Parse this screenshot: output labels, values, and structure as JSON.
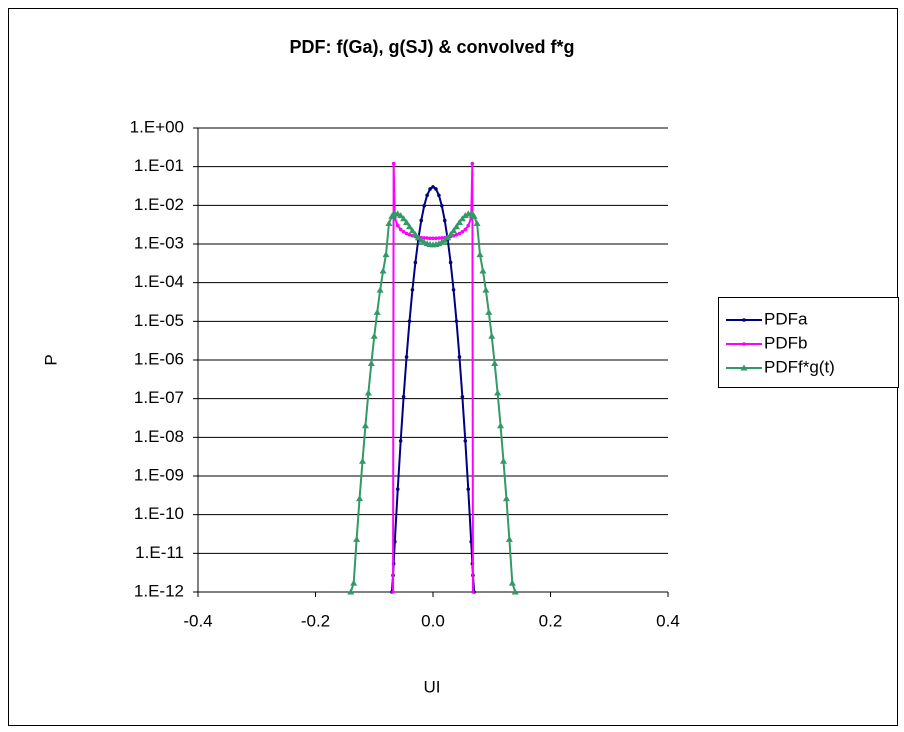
{
  "chart_data": {
    "type": "line",
    "title": "PDF: f(Ga), g(SJ) & convolved f*g",
    "xlabel": "UI",
    "ylabel": "P",
    "log_y": true,
    "grid": true,
    "legend": "right",
    "xlim": [
      -0.4,
      0.4
    ],
    "xticks": [
      -0.4,
      -0.2,
      {
        "value": 0,
        "label": "0.0"
      },
      0.2,
      0.4
    ],
    "ylim": [
      1e-12,
      1
    ],
    "yticks": [
      {
        "value": 1e-12,
        "label": "1.E-12"
      },
      {
        "value": 1e-11,
        "label": "1.E-11"
      },
      {
        "value": 1e-10,
        "label": "1.E-10"
      },
      {
        "value": 1e-09,
        "label": "1.E-09"
      },
      {
        "value": 1e-08,
        "label": "1.E-08"
      },
      {
        "value": 1e-07,
        "label": "1.E-07"
      },
      {
        "value": 1e-06,
        "label": "1.E-06"
      },
      {
        "value": 1e-05,
        "label": "1.E-05"
      },
      {
        "value": 0.0001,
        "label": "1.E-04"
      },
      {
        "value": 0.001,
        "label": "1.E-03"
      },
      {
        "value": 0.01,
        "label": "1.E-02"
      },
      {
        "value": 0.1,
        "label": "1.E-01"
      },
      {
        "value": 1,
        "label": "1.E+00"
      }
    ],
    "x": [
      -0.14,
      -0.135,
      -0.13,
      -0.125,
      -0.12,
      -0.115,
      -0.11,
      -0.105,
      -0.1,
      -0.095,
      -0.09,
      -0.085,
      -0.08,
      -0.075,
      -0.07,
      -0.068,
      -0.067,
      -0.065,
      -0.06,
      -0.055,
      -0.05,
      -0.045,
      -0.04,
      -0.035,
      -0.03,
      -0.025,
      -0.02,
      -0.015,
      -0.01,
      -0.005,
      0,
      0.005,
      0.01,
      0.015,
      0.02,
      0.025,
      0.03,
      0.035,
      0.04,
      0.045,
      0.05,
      0.055,
      0.06,
      0.065,
      0.067,
      0.068,
      0.07,
      0.075,
      0.08,
      0.085,
      0.09,
      0.095,
      0.1,
      0.105,
      0.11,
      0.115,
      0.12,
      0.125,
      0.13,
      0.135,
      0.14
    ],
    "series": [
      {
        "name": "PDFa",
        "color": "#000080",
        "marker": "dot",
        "values": [
          null,
          null,
          null,
          null,
          null,
          null,
          null,
          null,
          null,
          null,
          null,
          null,
          null,
          null,
          1e-12,
          2.7e-12,
          5.4e-12,
          2e-11,
          4.57e-10,
          8.09e-09,
          1.12e-07,
          1.2e-06,
          1.01e-05,
          6.56e-05,
          0.000333,
          0.00132,
          0.00406,
          0.00973,
          0.0182,
          0.0265,
          0.03,
          0.0265,
          0.0182,
          0.00973,
          0.00406,
          0.00132,
          0.000333,
          6.56e-05,
          1.01e-05,
          1.2e-06,
          1.12e-07,
          8.09e-09,
          4.57e-10,
          2e-11,
          5.4e-12,
          2.7e-12,
          1e-12,
          null,
          null,
          null,
          null,
          null,
          null,
          null,
          null,
          null,
          null,
          null,
          null,
          null,
          null
        ]
      },
      {
        "name": "PDFb",
        "color": "#ff00ff",
        "marker": "dot",
        "values": [
          null,
          null,
          null,
          null,
          null,
          null,
          null,
          null,
          null,
          null,
          null,
          null,
          null,
          null,
          null,
          1e-12,
          0.12,
          0.00477,
          0.00298,
          0.00238,
          0.00207,
          0.00187,
          0.00173,
          0.00163,
          0.00156,
          0.00151,
          0.00146,
          0.00144,
          0.00142,
          0.0014,
          0.0014,
          0.0014,
          0.00142,
          0.00144,
          0.00146,
          0.00151,
          0.00156,
          0.00163,
          0.00173,
          0.00187,
          0.00207,
          0.00238,
          0.00298,
          0.00477,
          0.12,
          1e-12,
          null,
          null,
          null,
          null,
          null,
          null,
          null,
          null,
          null,
          null,
          null,
          null,
          null,
          null,
          null
        ]
      },
      {
        "name": "PDFf*g(t)",
        "color": "#339966",
        "marker": "triangle",
        "values": [
          1e-12,
          1.7e-12,
          2.3e-11,
          2.6e-10,
          2.4e-09,
          2e-08,
          1.4e-07,
          8.1e-07,
          4.1e-06,
          1.7e-05,
          6.4e-05,
          0.0002,
          0.00053,
          0.0034,
          0.0052,
          0.0057,
          0.0059,
          0.0061,
          0.006,
          0.0054,
          0.0045,
          0.0036,
          0.0028,
          0.0022,
          0.00175,
          0.00145,
          0.00125,
          0.0011,
          0.00102,
          0.00097,
          0.00095,
          0.00097,
          0.00102,
          0.0011,
          0.00125,
          0.00145,
          0.00175,
          0.0022,
          0.0028,
          0.0036,
          0.0045,
          0.0054,
          0.006,
          0.0061,
          0.0059,
          0.0057,
          0.0052,
          0.0034,
          0.00053,
          0.0002,
          6.4e-05,
          1.7e-05,
          4.1e-06,
          8.1e-07,
          1.4e-07,
          2e-08,
          2.4e-09,
          2.6e-10,
          2.3e-11,
          1.7e-12,
          1e-12
        ]
      }
    ]
  }
}
